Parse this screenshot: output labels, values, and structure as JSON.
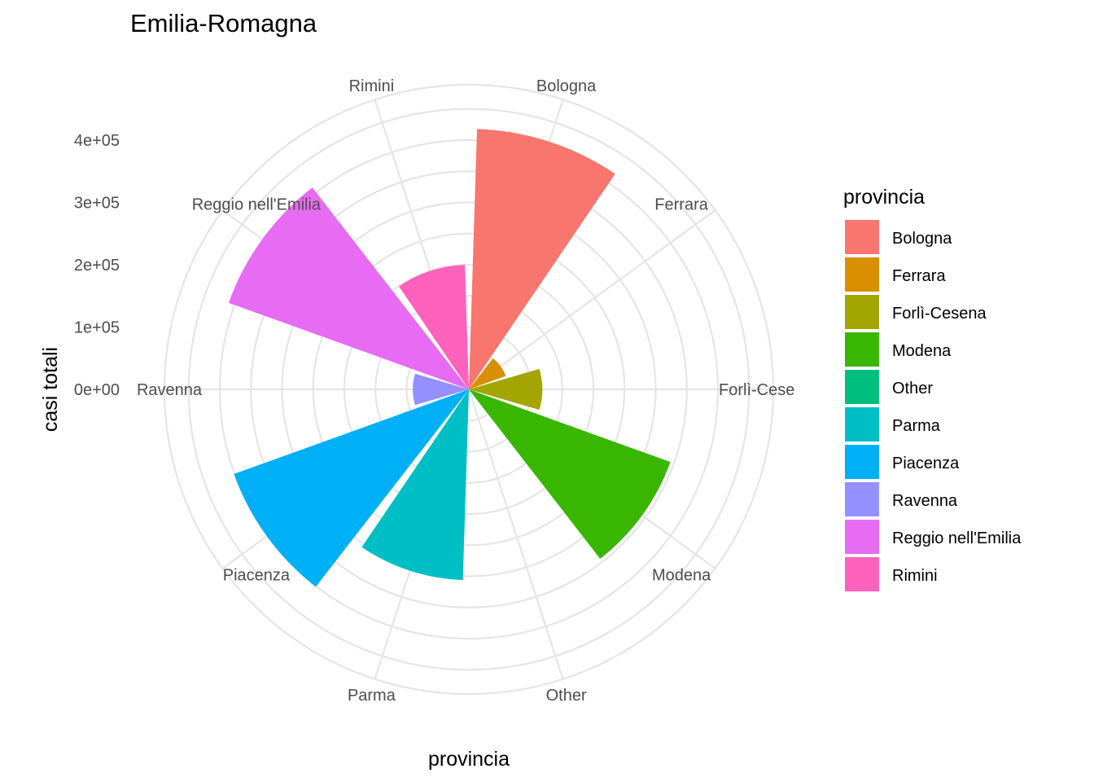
{
  "chart_data": {
    "type": "bar",
    "coord": "polar",
    "title": "Emilia-Romagna",
    "xlabel": "provincia",
    "ylabel": "casi totali",
    "categories": [
      "Bologna",
      "Ferrara",
      "Forlì-Cesena",
      "Modena",
      "Other",
      "Parma",
      "Piacenza",
      "Ravenna",
      "Reggio nell'Emilia",
      "Rimini"
    ],
    "category_labels": [
      "Bologna",
      "Ferrara",
      "Forlì-Cese",
      "Modena",
      "Other",
      "Parma",
      "Piacenza",
      "Ravenna",
      "Reggio nell'Emilia",
      "Rimini"
    ],
    "values": [
      418000,
      63000,
      118000,
      344000,
      0,
      306000,
      401000,
      90000,
      410000,
      200000
    ],
    "ylim": [
      0,
      490000
    ],
    "yticks": [
      0,
      100000,
      200000,
      300000,
      400000
    ],
    "ytick_labels": [
      "0e+00",
      "1e+05",
      "2e+05",
      "3e+05",
      "4e+05"
    ],
    "grid": true,
    "legend": {
      "title": "provincia",
      "position": "right",
      "entries": [
        "Bologna",
        "Ferrara",
        "Forlì-Cesena",
        "Modena",
        "Other",
        "Parma",
        "Piacenza",
        "Ravenna",
        "Reggio nell'Emilia",
        "Rimini"
      ]
    },
    "colors": [
      "#F8766D",
      "#D89000",
      "#A3A500",
      "#39B600",
      "#00BF7D",
      "#00BFC4",
      "#00B0F6",
      "#9590FF",
      "#E76BF3",
      "#FF62BC"
    ]
  }
}
